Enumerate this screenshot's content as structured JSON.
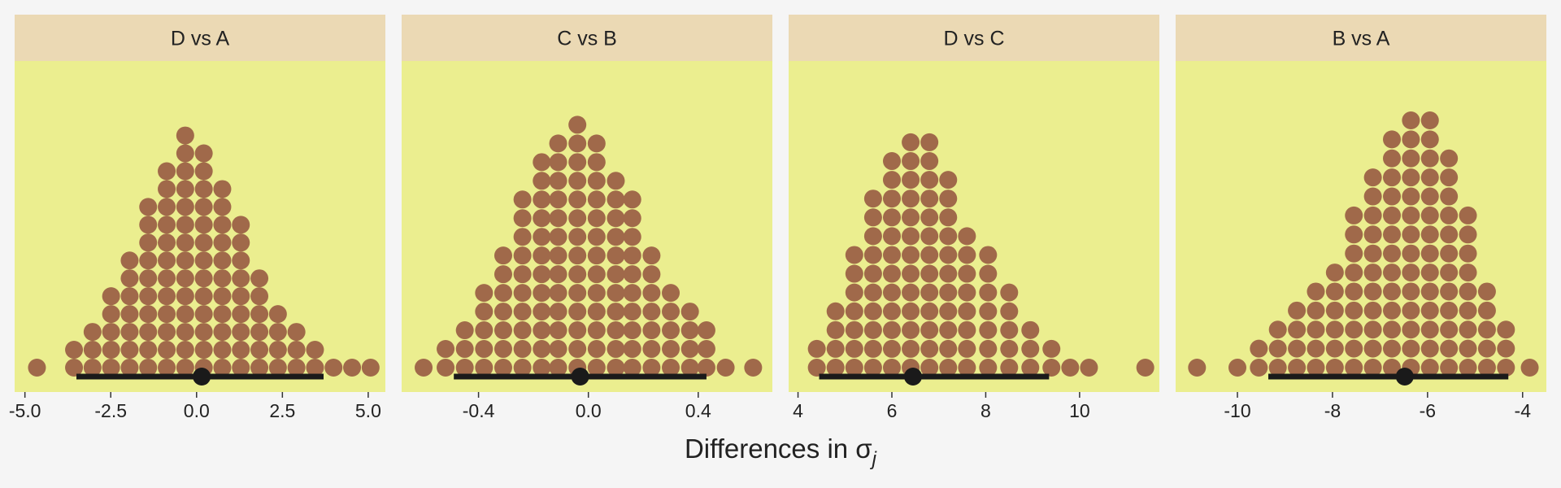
{
  "colors": {
    "figure_bg": "#f5f5f5",
    "panel_bg": "#ebee8f",
    "strip_bg": "#ebd9b4",
    "dot_fill": "#a0694a",
    "interval": "#1a1a1a",
    "text": "#222222"
  },
  "xlabel": {
    "main": "Differences in σ",
    "sub": "j"
  },
  "chart_data": [
    {
      "type": "dotplot",
      "title": "D vs A",
      "xticks": [
        -5,
        -2.5,
        0,
        2.5,
        5
      ],
      "xtick_labels": [
        "-5.0",
        "-2.5",
        "0.0",
        "2.5",
        "5.0"
      ],
      "xlim": [
        -5.3,
        5.5
      ],
      "dot_diameter": 0.52,
      "stacks": [
        {
          "x": -4.65,
          "n": 1
        },
        {
          "x": -3.57,
          "n": 2
        },
        {
          "x": -3.03,
          "n": 3
        },
        {
          "x": -2.49,
          "n": 5
        },
        {
          "x": -1.95,
          "n": 7
        },
        {
          "x": -1.41,
          "n": 10
        },
        {
          "x": -0.87,
          "n": 12
        },
        {
          "x": -0.33,
          "n": 14
        },
        {
          "x": 0.21,
          "n": 13
        },
        {
          "x": 0.75,
          "n": 11
        },
        {
          "x": 1.29,
          "n": 9
        },
        {
          "x": 1.83,
          "n": 6
        },
        {
          "x": 2.37,
          "n": 4
        },
        {
          "x": 2.91,
          "n": 3
        },
        {
          "x": 3.45,
          "n": 2
        },
        {
          "x": 3.99,
          "n": 1
        },
        {
          "x": 4.53,
          "n": 1
        },
        {
          "x": 5.07,
          "n": 1
        }
      ],
      "point": 0.15,
      "interval": [
        -3.5,
        3.7
      ]
    },
    {
      "type": "dotplot",
      "title": "C vs B",
      "xticks": [
        -0.4,
        0,
        0.4
      ],
      "xtick_labels": [
        "-0.4",
        "0.0",
        "0.4"
      ],
      "xlim": [
        -0.68,
        0.67
      ],
      "dot_diameter": 0.068,
      "stacks": [
        {
          "x": -0.6,
          "n": 1
        },
        {
          "x": -0.52,
          "n": 2
        },
        {
          "x": -0.45,
          "n": 3
        },
        {
          "x": -0.38,
          "n": 5
        },
        {
          "x": -0.31,
          "n": 7
        },
        {
          "x": -0.24,
          "n": 10
        },
        {
          "x": -0.17,
          "n": 12
        },
        {
          "x": -0.11,
          "n": 13
        },
        {
          "x": -0.04,
          "n": 14
        },
        {
          "x": 0.03,
          "n": 13
        },
        {
          "x": 0.1,
          "n": 11
        },
        {
          "x": 0.16,
          "n": 10
        },
        {
          "x": 0.23,
          "n": 7
        },
        {
          "x": 0.3,
          "n": 5
        },
        {
          "x": 0.37,
          "n": 4
        },
        {
          "x": 0.43,
          "n": 3
        },
        {
          "x": 0.5,
          "n": 1
        },
        {
          "x": 0.6,
          "n": 1
        }
      ],
      "point": -0.03,
      "interval": [
        -0.49,
        0.43
      ]
    },
    {
      "type": "dotplot",
      "title": "D vs C",
      "xticks": [
        4,
        6,
        8,
        10
      ],
      "xtick_labels": [
        "4",
        "6",
        "8",
        "10"
      ],
      "xlim": [
        3.8,
        11.7
      ],
      "dot_diameter": 0.4,
      "stacks": [
        {
          "x": 4.4,
          "n": 2
        },
        {
          "x": 4.8,
          "n": 4
        },
        {
          "x": 5.2,
          "n": 7
        },
        {
          "x": 5.6,
          "n": 10
        },
        {
          "x": 6.0,
          "n": 12
        },
        {
          "x": 6.4,
          "n": 13
        },
        {
          "x": 6.8,
          "n": 13
        },
        {
          "x": 7.2,
          "n": 11
        },
        {
          "x": 7.6,
          "n": 8
        },
        {
          "x": 8.05,
          "n": 7
        },
        {
          "x": 8.5,
          "n": 5
        },
        {
          "x": 8.95,
          "n": 3
        },
        {
          "x": 9.4,
          "n": 2
        },
        {
          "x": 9.8,
          "n": 1
        },
        {
          "x": 10.2,
          "n": 1
        },
        {
          "x": 11.4,
          "n": 1
        }
      ],
      "point": 6.45,
      "interval": [
        4.45,
        9.35
      ]
    },
    {
      "type": "dotplot",
      "title": "B vs A",
      "xticks": [
        -10,
        -8,
        -6,
        -4
      ],
      "xtick_labels": [
        "-10",
        "-8",
        "-6",
        "-4"
      ],
      "xlim": [
        -11.3,
        -3.5
      ],
      "dot_diameter": 0.4,
      "stacks": [
        {
          "x": -10.85,
          "n": 1
        },
        {
          "x": -10.0,
          "n": 1
        },
        {
          "x": -9.55,
          "n": 2
        },
        {
          "x": -9.15,
          "n": 3
        },
        {
          "x": -8.75,
          "n": 4
        },
        {
          "x": -8.35,
          "n": 5
        },
        {
          "x": -7.95,
          "n": 6
        },
        {
          "x": -7.55,
          "n": 9
        },
        {
          "x": -7.15,
          "n": 11
        },
        {
          "x": -6.75,
          "n": 13
        },
        {
          "x": -6.35,
          "n": 14
        },
        {
          "x": -5.95,
          "n": 14
        },
        {
          "x": -5.55,
          "n": 12
        },
        {
          "x": -5.15,
          "n": 9
        },
        {
          "x": -4.75,
          "n": 5
        },
        {
          "x": -4.35,
          "n": 3
        },
        {
          "x": -3.85,
          "n": 1
        }
      ],
      "point": -6.48,
      "interval": [
        -9.35,
        -4.3
      ]
    }
  ]
}
